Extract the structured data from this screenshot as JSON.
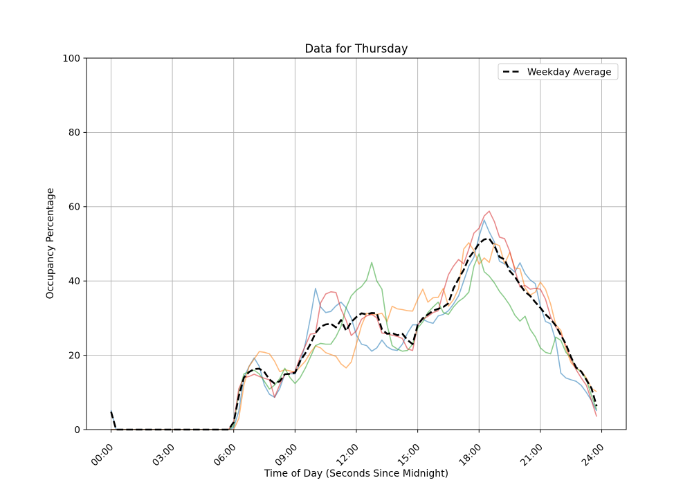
{
  "figure": {
    "background": "#ffffff"
  },
  "chart_data": {
    "type": "line",
    "title": "Data for Thursday",
    "xlabel": "Time of Day (Seconds Since Midnight)",
    "ylabel": "Occupancy Percentage",
    "xlim_seconds": [
      -4320,
      90720
    ],
    "ylim": [
      0,
      100
    ],
    "yticks": [
      0,
      20,
      40,
      60,
      80,
      100
    ],
    "xtick_seconds": [
      0,
      10800,
      21600,
      32400,
      43200,
      54000,
      64800,
      75600,
      86400
    ],
    "xtick_labels": [
      "00:00",
      "03:00",
      "06:00",
      "09:00",
      "12:00",
      "15:00",
      "18:00",
      "21:00",
      "24:00"
    ],
    "grid": true,
    "grid_color": "#b0b0b0",
    "spine_color": "#000000",
    "x_start_seconds": 0,
    "x_step_seconds": 900,
    "legend": {
      "position": "upper right",
      "entries": [
        {
          "label": "Weekday Average",
          "color": "#000000",
          "line_style": "dashed"
        }
      ]
    },
    "series": [
      {
        "name": "thursday-instance-1",
        "color": "#1f77b4",
        "alpha": 0.55,
        "line_style": "solid",
        "line_width": 1.6,
        "values": [
          5.2,
          0,
          0,
          0,
          0,
          0,
          0,
          0,
          0,
          0,
          0,
          0,
          0,
          0,
          0,
          0,
          0,
          0,
          0,
          0,
          0,
          0,
          0,
          0,
          0.5,
          5,
          14,
          17,
          19.3,
          17,
          12,
          9.5,
          8.7,
          11,
          15,
          15,
          15,
          18,
          23,
          30,
          38,
          33,
          31.5,
          31.8,
          33.3,
          34.3,
          32.8,
          30,
          25.5,
          23,
          22.6,
          21.1,
          22,
          24.1,
          22.3,
          21.5,
          21.3,
          23,
          26,
          28.2,
          28.2,
          29.7,
          29,
          28.6,
          30.6,
          31,
          32,
          33.8,
          36,
          40,
          44,
          46.4,
          52,
          56.4,
          53.2,
          50.5,
          45.3,
          44.6,
          43.6,
          42.4,
          44.9,
          42,
          40.3,
          39.3,
          33.2,
          29.1,
          28.5,
          23.9,
          15.2,
          13.9,
          13.4,
          13,
          11.9,
          10,
          7.8,
          5
        ]
      },
      {
        "name": "thursday-instance-2",
        "color": "#ff7f0e",
        "alpha": 0.55,
        "line_style": "solid",
        "line_width": 1.6,
        "values": [
          0,
          0,
          0,
          0,
          0,
          0,
          0,
          0,
          0,
          0,
          0,
          0,
          0,
          0,
          0,
          0,
          0,
          0,
          0,
          0,
          0,
          0,
          0,
          0,
          0,
          3,
          12,
          17,
          19,
          21,
          20.8,
          20.4,
          18.4,
          15.6,
          16.1,
          15.8,
          15.5,
          16.9,
          18.4,
          20.7,
          22.5,
          22,
          20.7,
          20.2,
          19.7,
          17.7,
          16.6,
          18.2,
          23,
          28,
          31.3,
          31,
          31,
          31.3,
          29.1,
          33.2,
          32.5,
          32.3,
          32,
          31.9,
          35.1,
          37.8,
          34.3,
          35.5,
          35.6,
          38,
          33.2,
          35,
          38,
          48.6,
          50.3,
          48.2,
          44.5,
          46.2,
          45,
          50.1,
          49.5,
          44.6,
          47.7,
          43.5,
          43.3,
          38.1,
          36.2,
          37,
          39.7,
          37.8,
          33.8,
          28.2,
          26.7,
          21.7,
          18,
          16.5,
          15.8,
          13.9,
          11.1,
          10.2
        ]
      },
      {
        "name": "thursday-instance-3",
        "color": "#2ca02c",
        "alpha": 0.55,
        "line_style": "solid",
        "line_width": 1.6,
        "values": [
          0,
          0,
          0,
          0,
          0,
          0,
          0,
          0,
          0,
          0,
          0,
          0,
          0,
          0,
          0,
          0,
          0,
          0,
          0,
          0,
          0,
          0,
          0,
          0,
          1,
          10,
          15,
          15.6,
          16,
          15,
          13,
          10.9,
          12,
          13.7,
          16.5,
          14,
          12.4,
          14,
          16.5,
          19.5,
          22.6,
          23.2,
          23,
          23,
          25,
          27.8,
          32.8,
          36,
          37.5,
          38.5,
          40.3,
          45,
          40,
          37.8,
          28.2,
          22.6,
          21.7,
          21.1,
          21.3,
          23,
          27.3,
          29,
          31.5,
          33,
          34.3,
          31.5,
          31,
          33,
          34.5,
          35.5,
          37,
          44,
          47.3,
          42.5,
          41.3,
          39.5,
          37.2,
          35.5,
          33.5,
          30.8,
          29.2,
          30.5,
          27,
          25,
          22,
          20.8,
          20.4,
          24.9,
          24,
          20.8,
          19.3,
          16.5,
          15.6,
          13.4,
          9.1,
          5.4
        ]
      },
      {
        "name": "thursday-instance-4",
        "color": "#d62728",
        "alpha": 0.55,
        "line_style": "solid",
        "line_width": 1.6,
        "values": [
          0,
          0,
          0,
          0,
          0,
          0,
          0,
          0,
          0,
          0,
          0,
          0,
          0,
          0,
          0,
          0,
          0,
          0,
          0,
          0,
          0,
          0,
          0,
          0,
          2,
          11,
          14,
          14.3,
          14.9,
          14.3,
          13.8,
          13.4,
          8.7,
          12.1,
          14.9,
          15.2,
          15.6,
          19.5,
          22.5,
          25.7,
          25.9,
          34.1,
          36.5,
          37.1,
          36.9,
          32.4,
          29.4,
          25.3,
          26.6,
          29.7,
          30.6,
          31,
          30.1,
          26,
          25.8,
          25.4,
          25.1,
          24.5,
          21.7,
          21.3,
          28.2,
          29.7,
          30.5,
          31.5,
          32,
          37.1,
          41.7,
          44,
          45.8,
          44.6,
          48.6,
          52.9,
          54.2,
          57.5,
          58.8,
          56,
          51.8,
          51.4,
          48,
          43,
          38.4,
          38.8,
          37.8,
          38,
          37.8,
          35.1,
          30.4,
          27.6,
          25.8,
          22.6,
          18.9,
          16.1,
          13.9,
          11.9,
          7.8,
          3.5
        ]
      },
      {
        "name": "weekday-average",
        "label": "Weekday Average",
        "color": "#000000",
        "alpha": 1,
        "line_style": "dashed",
        "line_width": 2.6,
        "values": [
          4.8,
          0,
          0,
          0,
          0,
          0,
          0,
          0,
          0,
          0,
          0,
          0,
          0,
          0,
          0,
          0,
          0,
          0,
          0,
          0,
          0,
          0,
          0,
          0,
          2,
          9,
          14,
          15.5,
          16.3,
          16.4,
          15.5,
          13.5,
          12.4,
          13,
          14.9,
          15,
          15.3,
          18.5,
          20.5,
          23,
          26,
          27.7,
          28.3,
          28.5,
          27.5,
          29.5,
          26.6,
          29,
          30.3,
          31.3,
          31,
          31.4,
          31.3,
          27,
          25.8,
          26,
          25.4,
          25.8,
          24.1,
          23,
          28.2,
          30,
          31,
          32,
          32.5,
          33,
          34,
          38,
          40.6,
          43,
          46.2,
          48,
          50.1,
          51.2,
          51.4,
          49.5,
          46.5,
          45.8,
          42.7,
          41.2,
          39,
          37.1,
          36,
          34.3,
          32.8,
          31,
          29.7,
          28,
          25.4,
          23,
          19.5,
          16.7,
          15.6,
          13.4,
          11.1,
          6.3
        ]
      }
    ]
  }
}
